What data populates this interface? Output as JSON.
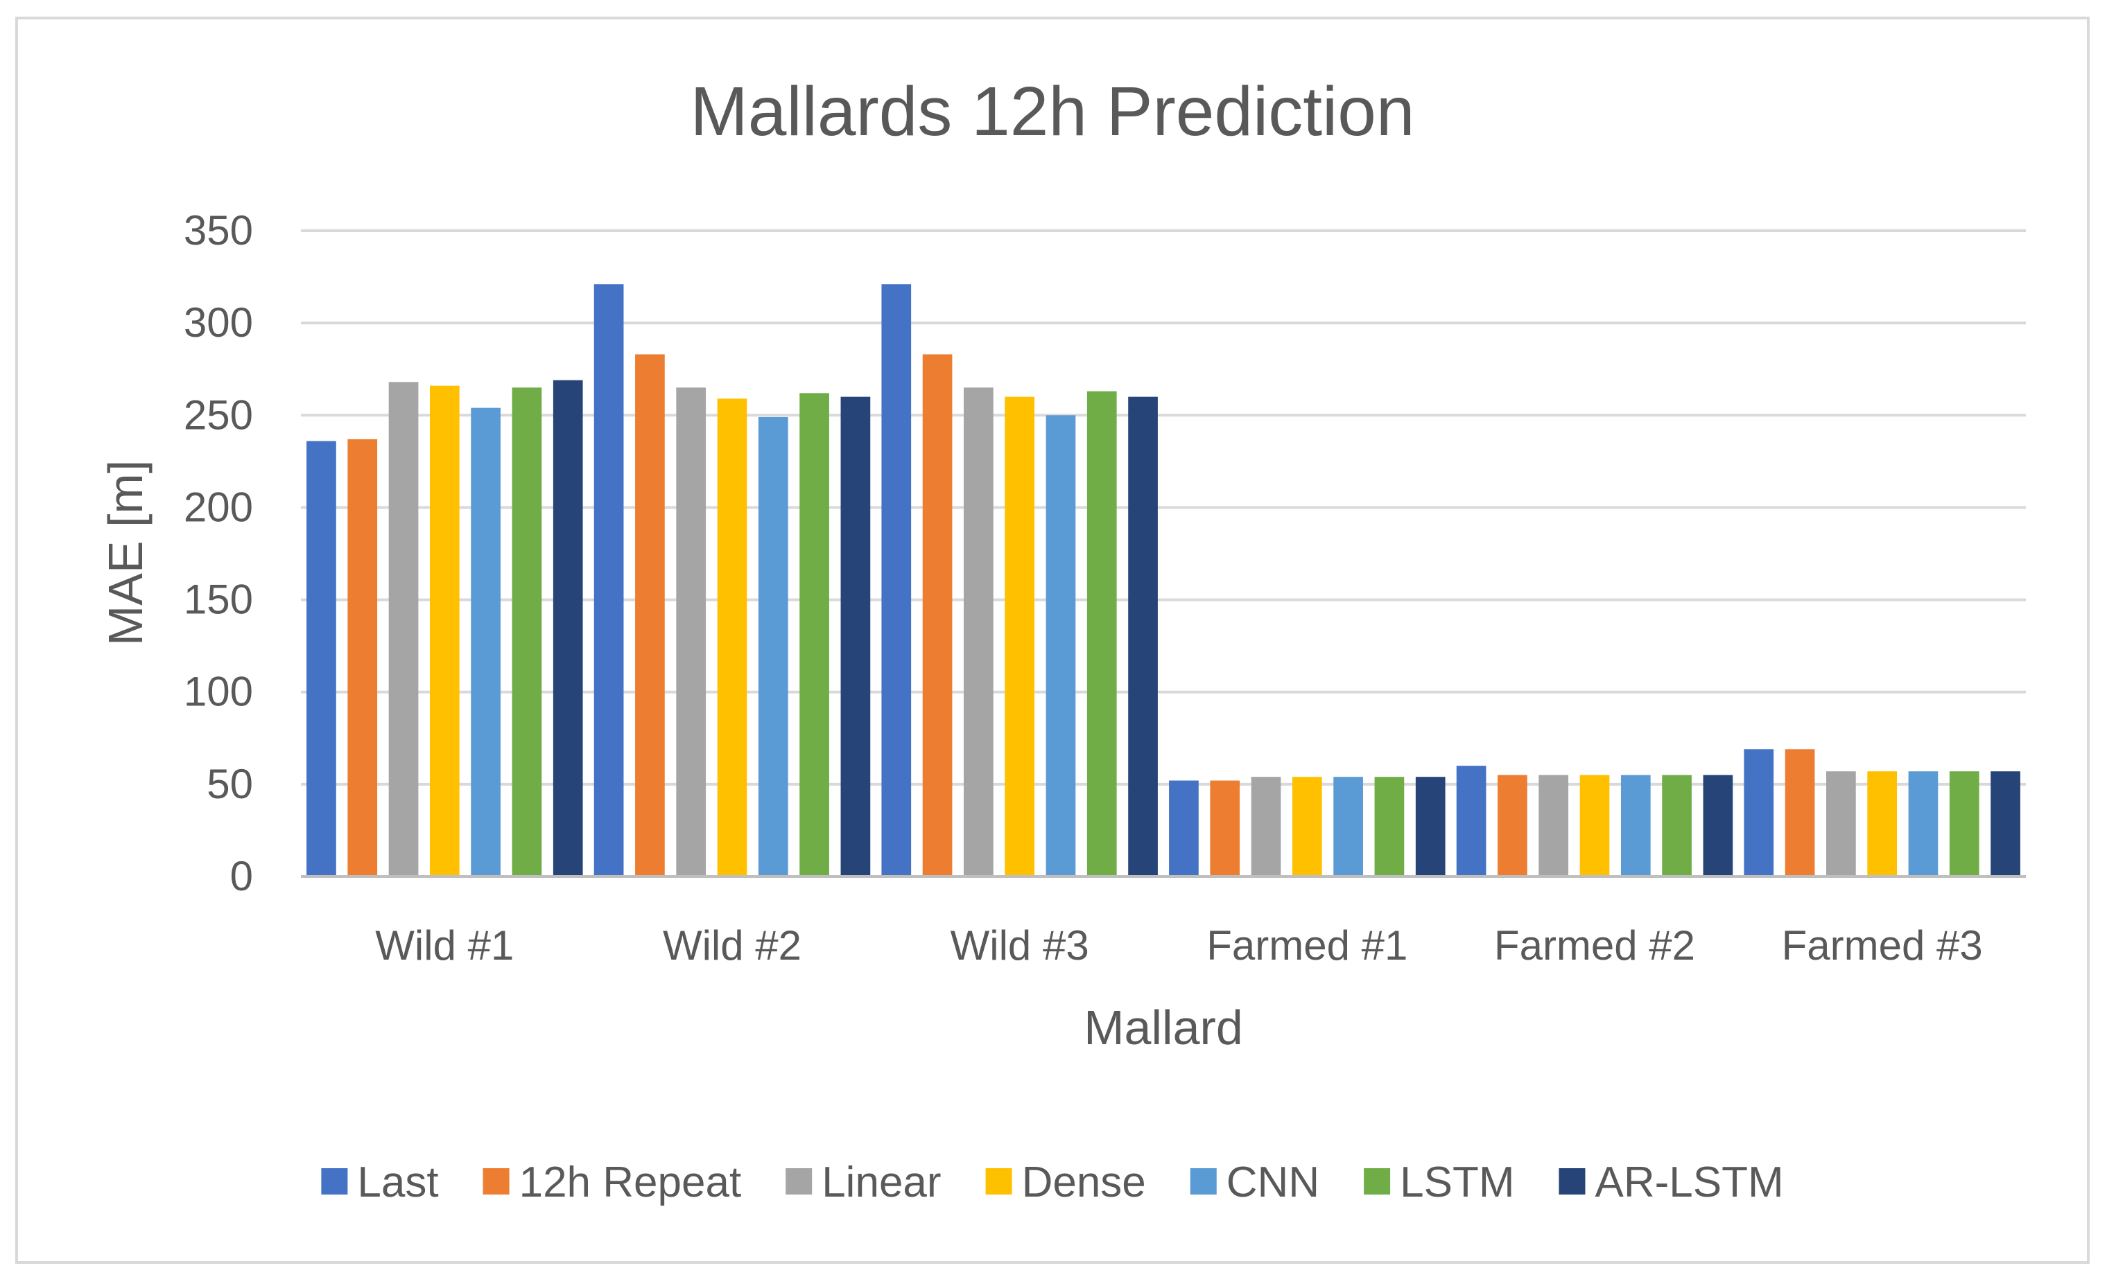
{
  "chart_data": {
    "type": "bar",
    "title": "Mallards 12h Prediction",
    "xlabel": "Mallard",
    "ylabel": "MAE [m]",
    "ylim": [
      0,
      350
    ],
    "yticks": [
      0,
      50,
      100,
      150,
      200,
      250,
      300,
      350
    ],
    "grid": true,
    "legend_position": "bottom",
    "categories": [
      "Wild #1",
      "Wild #2",
      "Wild #3",
      "Farmed #1",
      "Farmed #2",
      "Farmed #3"
    ],
    "series": [
      {
        "name": "Last",
        "color": "#4472C4",
        "values": [
          236,
          321,
          321,
          52,
          60,
          69
        ]
      },
      {
        "name": "12h Repeat",
        "color": "#ED7D31",
        "values": [
          237,
          283,
          283,
          52,
          55,
          69
        ]
      },
      {
        "name": "Linear",
        "color": "#A5A5A5",
        "values": [
          268,
          265,
          265,
          54,
          55,
          57
        ]
      },
      {
        "name": "Dense",
        "color": "#FFC000",
        "values": [
          266,
          259,
          260,
          54,
          55,
          57
        ]
      },
      {
        "name": "CNN",
        "color": "#5B9BD5",
        "values": [
          254,
          249,
          250,
          54,
          55,
          57
        ]
      },
      {
        "name": "LSTM",
        "color": "#70AD47",
        "values": [
          265,
          262,
          263,
          54,
          55,
          57
        ]
      },
      {
        "name": "AR-LSTM",
        "color": "#264478",
        "values": [
          269,
          260,
          260,
          54,
          55,
          57
        ]
      }
    ]
  }
}
